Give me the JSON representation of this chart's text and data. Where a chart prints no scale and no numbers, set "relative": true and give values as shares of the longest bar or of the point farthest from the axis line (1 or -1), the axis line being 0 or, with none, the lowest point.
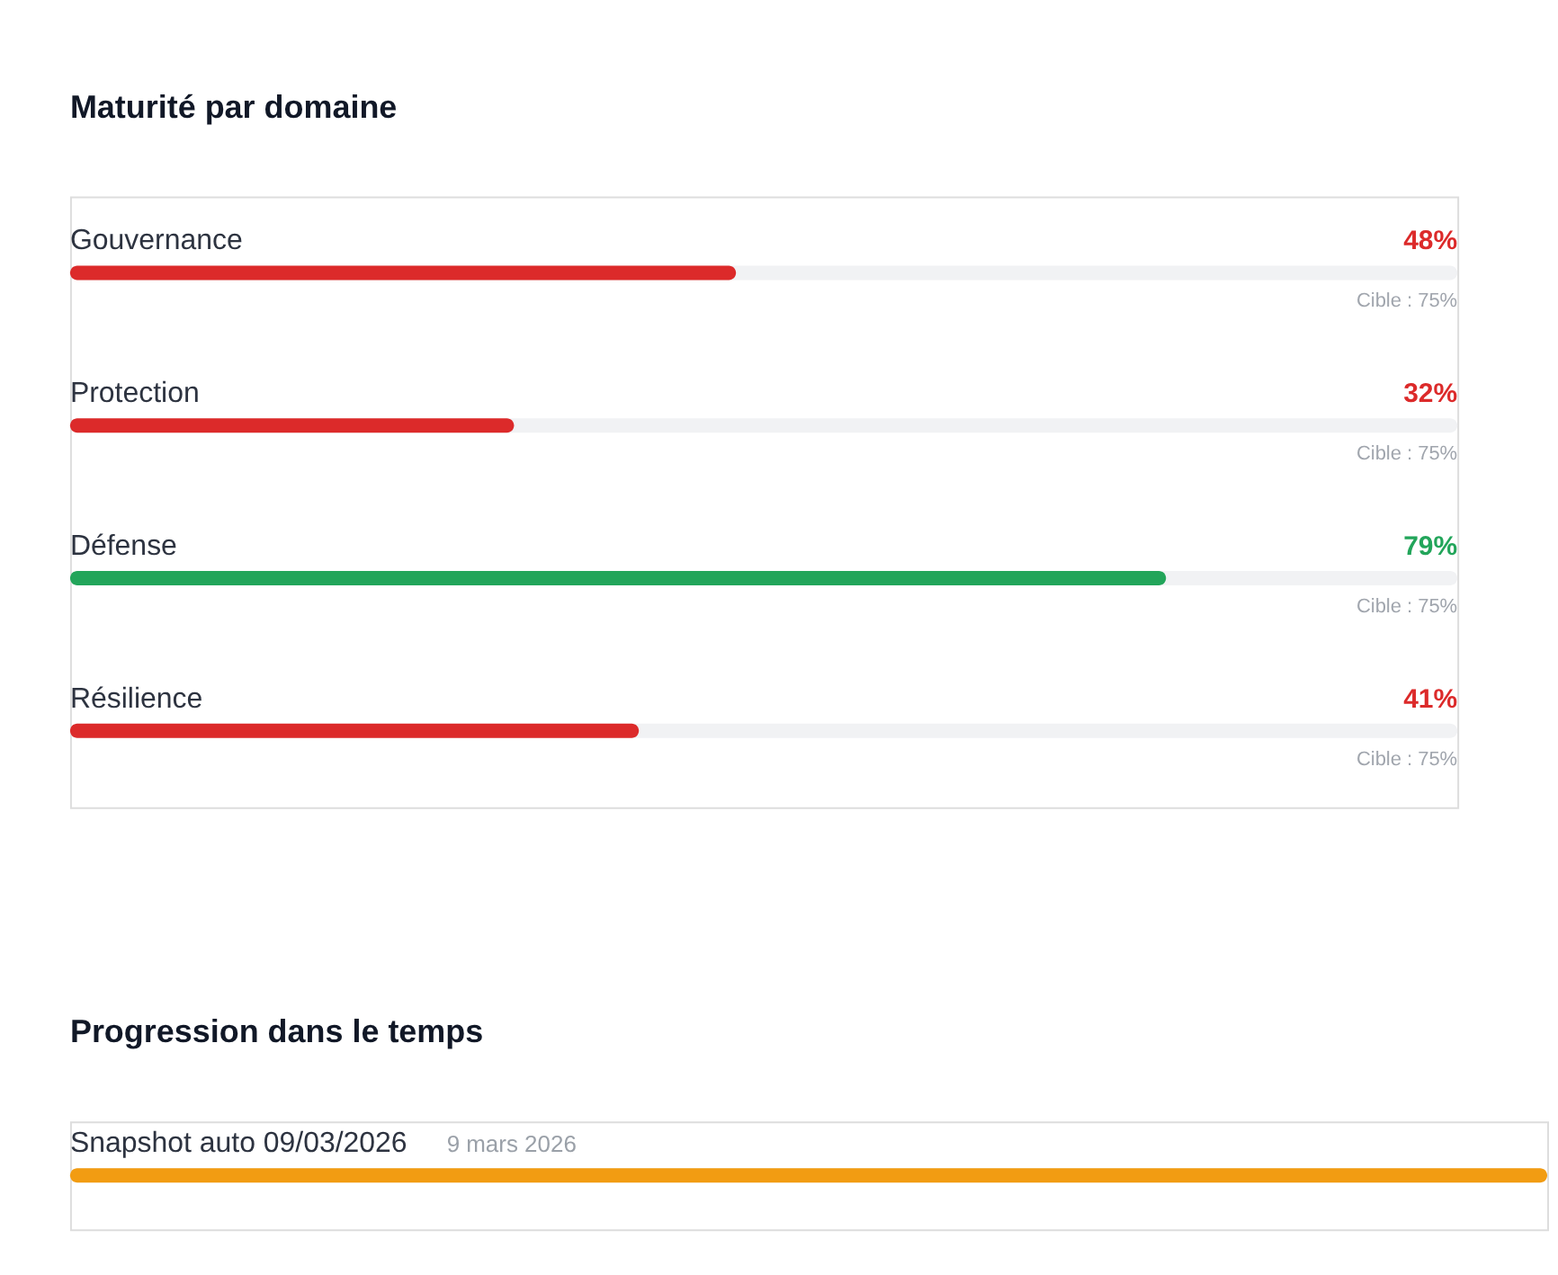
{
  "chart_data": [
    {
      "type": "bar",
      "orientation": "horizontal",
      "title": "Maturité par domaine",
      "categories": [
        "Gouvernance",
        "Protection",
        "Défense",
        "Résilience"
      ],
      "values": [
        48,
        32,
        79,
        41
      ],
      "colors": [
        "#dc2a2a",
        "#dc2a2a",
        "#22a55a",
        "#dc2a2a"
      ],
      "value_labels": [
        "48%",
        "32%",
        "79%",
        "41%"
      ],
      "xlim": [
        0,
        100
      ],
      "annotations": [
        "Cible : 75%",
        "Cible : 75%",
        "Cible : 75%",
        "Cible : 75%"
      ]
    },
    {
      "type": "bar",
      "orientation": "horizontal",
      "relative": true,
      "title": "Progression dans le temps",
      "categories": [
        "Snapshot auto 09/03/2026"
      ],
      "values": [
        1
      ],
      "colors": [
        "#f29c12"
      ],
      "annotations": [
        "9 mars 2026"
      ]
    }
  ]
}
